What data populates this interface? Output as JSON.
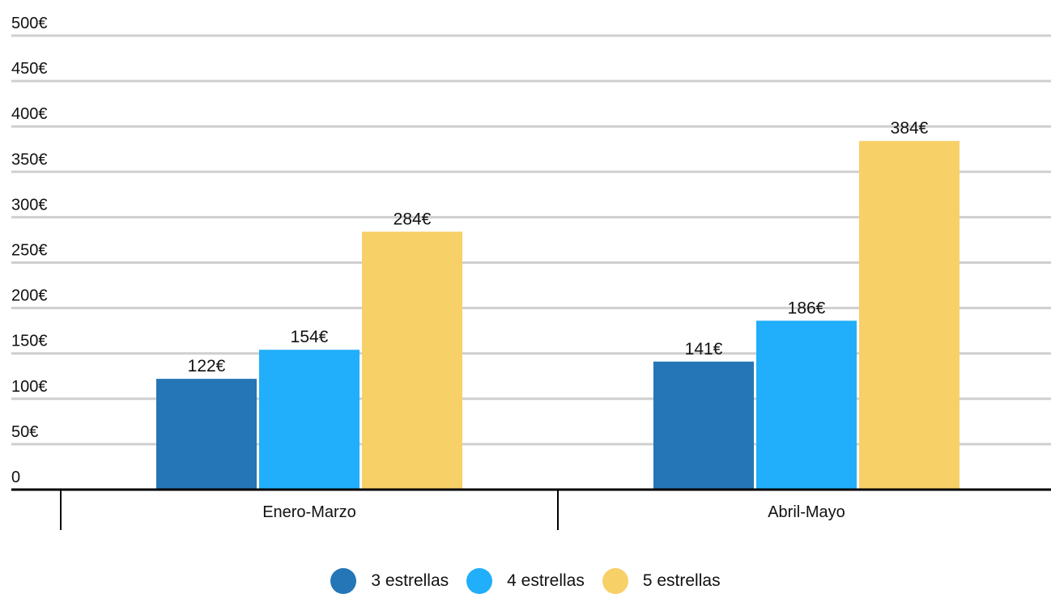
{
  "chart_data": {
    "type": "bar",
    "categories": [
      "Enero-Marzo",
      "Abril-Mayo"
    ],
    "series": [
      {
        "name": "3 estrellas",
        "values": [
          122,
          141
        ],
        "value_labels": [
          "122€",
          "141€"
        ],
        "color": "#2476b6"
      },
      {
        "name": "4 estrellas",
        "values": [
          154,
          186
        ],
        "value_labels": [
          "154€",
          "186€"
        ],
        "color": "#21aefa"
      },
      {
        "name": "5 estrellas",
        "values": [
          284,
          384
        ],
        "value_labels": [
          "284€",
          "384€"
        ],
        "color": "#f8d068"
      }
    ],
    "y_ticks": [
      0,
      50,
      100,
      150,
      200,
      250,
      300,
      350,
      400,
      450,
      500
    ],
    "y_tick_labels": [
      "0",
      "50€",
      "100€",
      "150€",
      "200€",
      "250€",
      "300€",
      "350€",
      "400€",
      "450€",
      "500€"
    ],
    "ylim": [
      0,
      500
    ],
    "grid": true,
    "legend_position": "bottom",
    "title": "",
    "xlabel": "",
    "ylabel": ""
  }
}
